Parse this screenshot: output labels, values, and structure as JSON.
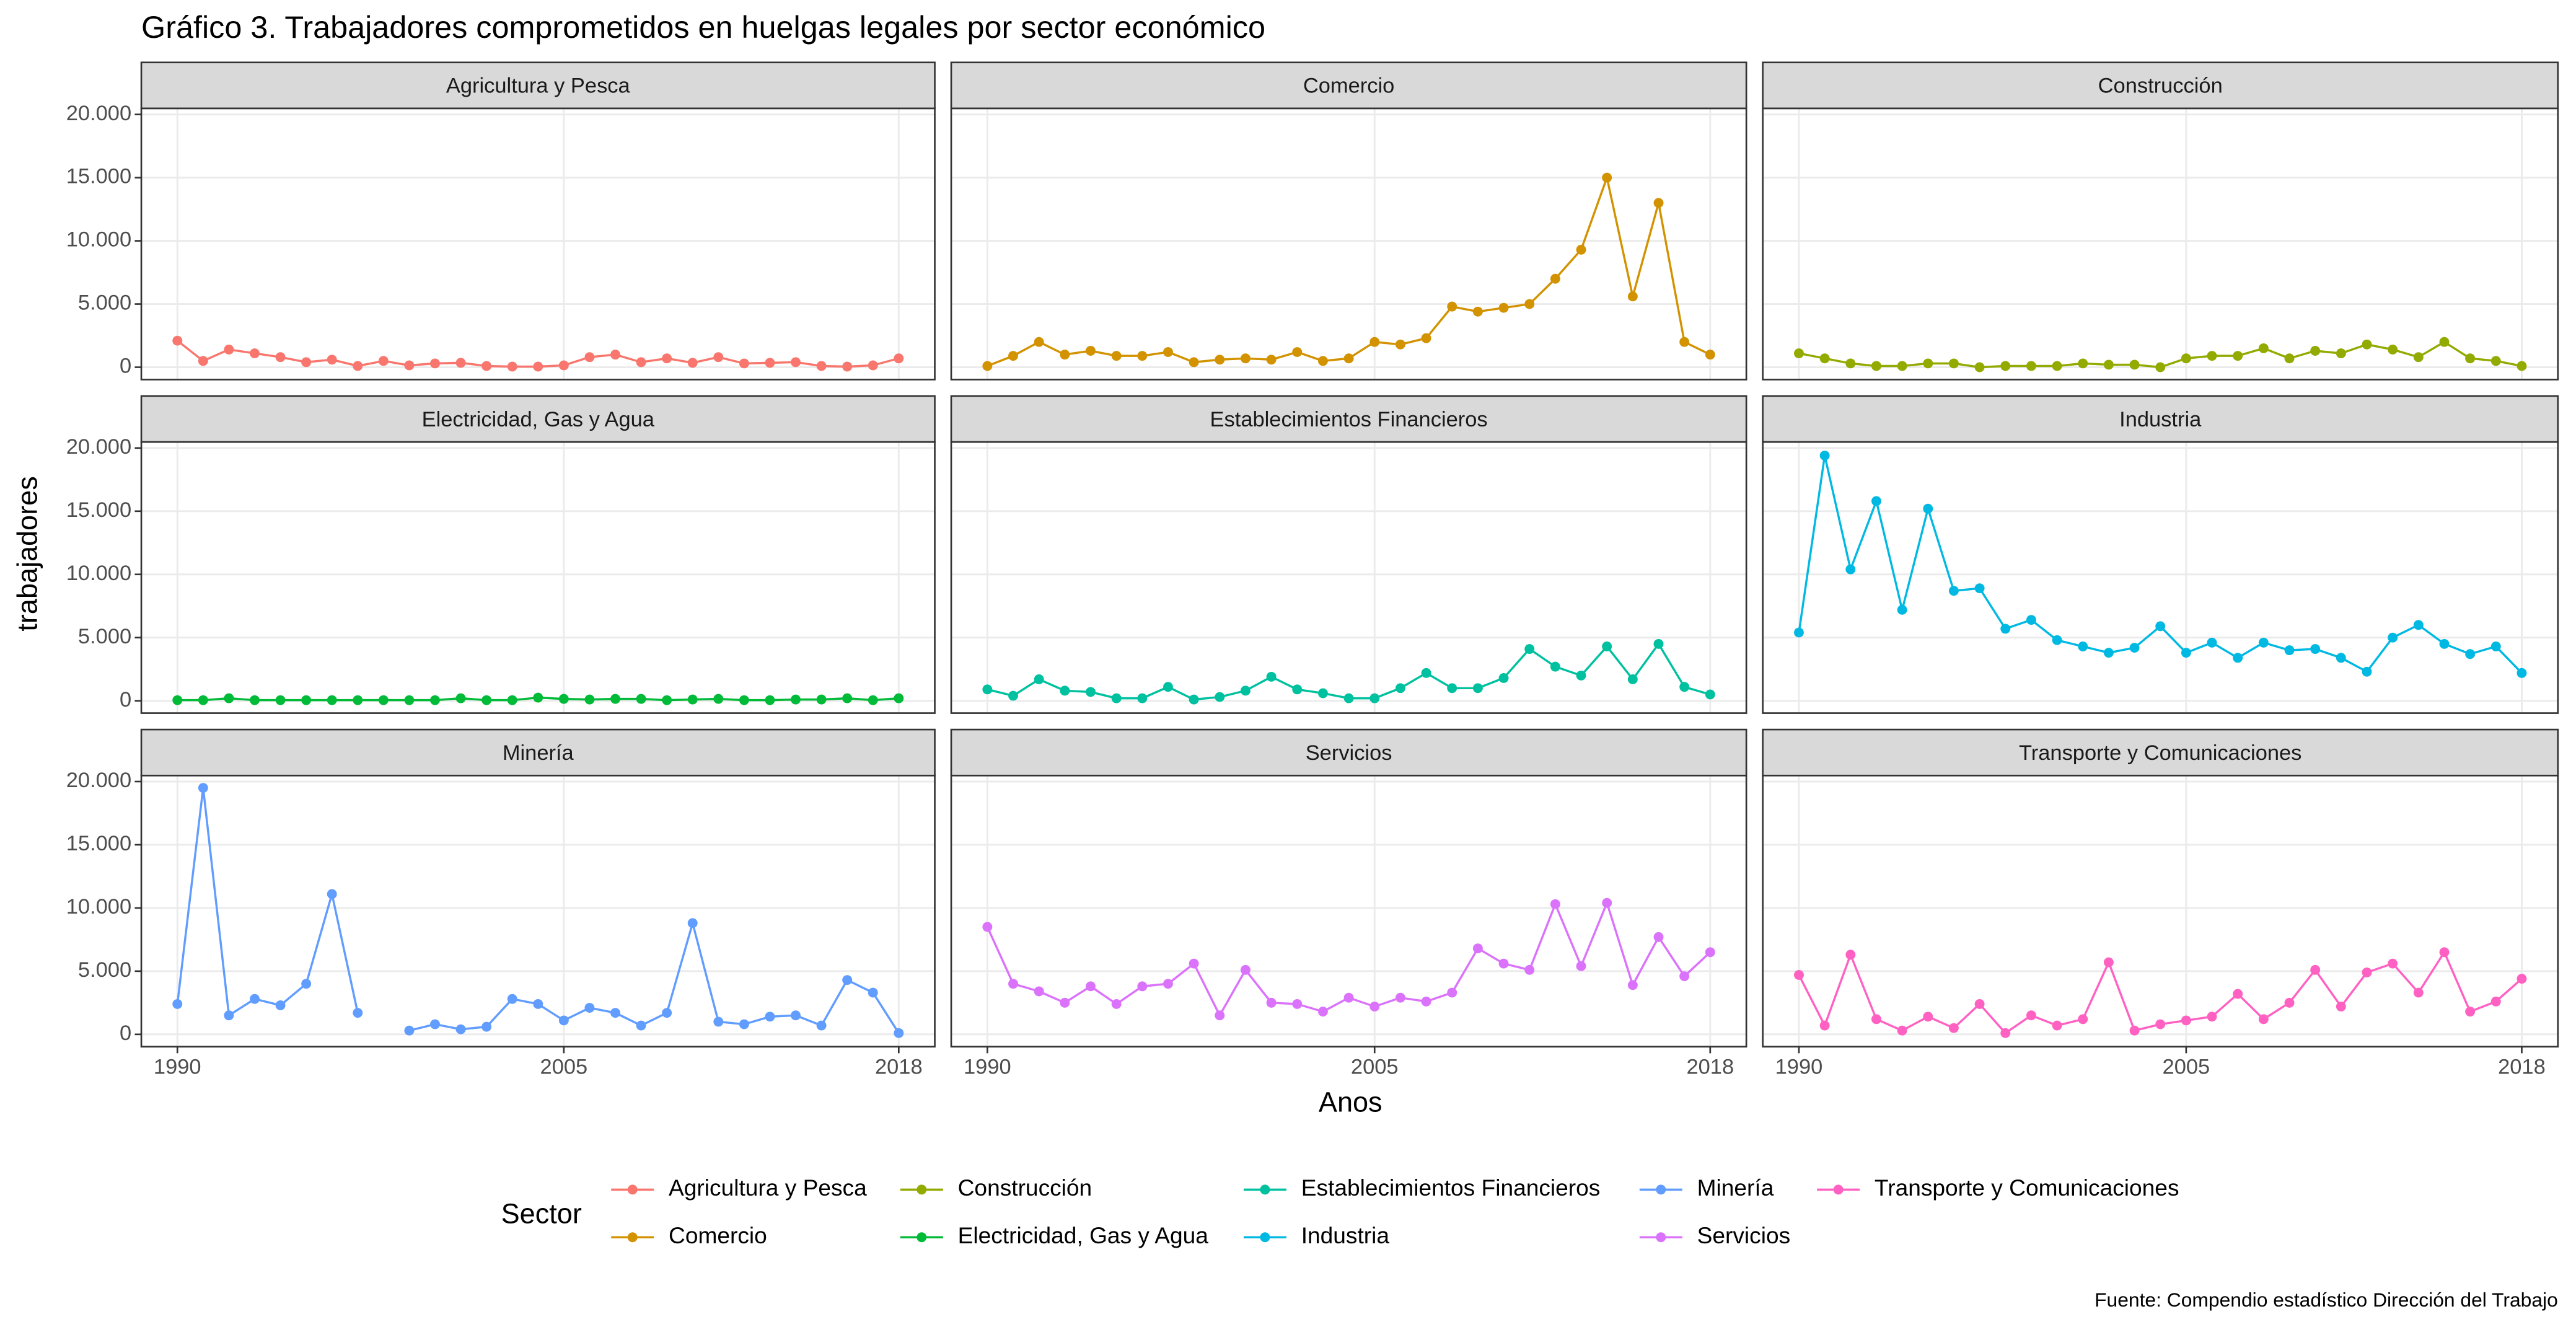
{
  "chart_data": {
    "type": "line",
    "title": "Gráfico 3. Trabajadores comprometidos en huelgas legales por sector económico",
    "xlabel": "Anos",
    "ylabel": "trabajadores",
    "legend_title": "Sector",
    "caption": "Fuente: Compendio estadístico Dirección del Trabajo",
    "grid": true,
    "legend": "bottom",
    "x": [
      1990,
      1991,
      1992,
      1993,
      1994,
      1995,
      1996,
      1997,
      1998,
      1999,
      2000,
      2001,
      2002,
      2003,
      2004,
      2005,
      2006,
      2007,
      2008,
      2009,
      2010,
      2011,
      2012,
      2013,
      2014,
      2015,
      2016,
      2017,
      2018
    ],
    "xlim": [
      1988.6,
      2019.4
    ],
    "xticks": [
      1990,
      2005,
      2018
    ],
    "ylim": [
      -975,
      20475
    ],
    "yticks": [
      0,
      {
        "value": 5000,
        "label": "5.000"
      },
      {
        "value": 10000,
        "label": "10.000"
      },
      {
        "value": 15000,
        "label": "15.000"
      },
      {
        "value": 20000,
        "label": "20.000"
      }
    ],
    "series": [
      {
        "name": "Agricultura y Pesca",
        "color": "#F8766D",
        "values": [
          2100,
          500,
          1400,
          1100,
          800,
          400,
          600,
          100,
          500,
          150,
          300,
          350,
          100,
          50,
          50,
          150,
          800,
          1000,
          400,
          700,
          350,
          800,
          300,
          350,
          400,
          100,
          50,
          150,
          700
        ]
      },
      {
        "name": "Comercio",
        "color": "#D39200",
        "values": [
          100,
          900,
          2000,
          1000,
          1300,
          900,
          900,
          1200,
          400,
          600,
          700,
          600,
          1200,
          500,
          700,
          2000,
          1800,
          2300,
          4800,
          4400,
          4700,
          5000,
          7000,
          9300,
          15000,
          5600,
          13000,
          2000,
          1000
        ]
      },
      {
        "name": "Construcción",
        "color": "#93AA00",
        "values": [
          1100,
          700,
          300,
          100,
          100,
          300,
          300,
          0,
          100,
          100,
          100,
          300,
          200,
          200,
          0,
          700,
          900,
          900,
          1500,
          700,
          1300,
          1100,
          1800,
          1400,
          800,
          2000,
          700,
          500,
          100
        ]
      },
      {
        "name": "Electricidad, Gas y Agua",
        "color": "#00BA38",
        "values": [
          50,
          50,
          200,
          50,
          50,
          50,
          50,
          50,
          50,
          50,
          50,
          200,
          50,
          50,
          250,
          150,
          100,
          150,
          150,
          50,
          100,
          150,
          50,
          50,
          100,
          100,
          200,
          50,
          200
        ]
      },
      {
        "name": "Establecimientos Financieros",
        "color": "#00C19F",
        "values": [
          900,
          400,
          1700,
          800,
          700,
          200,
          200,
          1100,
          100,
          300,
          800,
          1900,
          900,
          600,
          200,
          200,
          1000,
          2200,
          1000,
          1000,
          1800,
          4100,
          2700,
          2000,
          4300,
          1700,
          4500,
          1100,
          500
        ]
      },
      {
        "name": "Industria",
        "color": "#00B9E3",
        "values": [
          5400,
          19400,
          10400,
          15800,
          7200,
          15200,
          8700,
          8900,
          5700,
          6400,
          4800,
          4300,
          3800,
          4200,
          5900,
          3800,
          4600,
          3400,
          4600,
          4000,
          4100,
          3400,
          2300,
          5000,
          6000,
          4500,
          3700,
          4300,
          2200
        ]
      },
      {
        "name": "Minería",
        "color": "#619CFF",
        "values": [
          2400,
          19500,
          1500,
          2800,
          2300,
          4000,
          11100,
          1700,
          null,
          300,
          800,
          400,
          600,
          2800,
          2400,
          1100,
          2100,
          1700,
          700,
          1700,
          8800,
          1000,
          800,
          1400,
          1500,
          700,
          4300,
          3300,
          100
        ]
      },
      {
        "name": "Servicios",
        "color": "#DB72FB",
        "values": [
          8500,
          4000,
          3400,
          2500,
          3800,
          2400,
          3800,
          4000,
          5600,
          1500,
          5100,
          2500,
          2400,
          1800,
          2900,
          2200,
          2900,
          2600,
          3300,
          6800,
          5600,
          5100,
          10300,
          5400,
          10400,
          3900,
          7700,
          4600,
          6500
        ]
      },
      {
        "name": "Transporte y Comunicaciones",
        "color": "#FF61C3",
        "values": [
          4700,
          700,
          6300,
          1200,
          300,
          1400,
          500,
          2400,
          100,
          1500,
          700,
          1200,
          5700,
          300,
          800,
          1100,
          1400,
          3200,
          1200,
          2500,
          5100,
          2200,
          4900,
          5600,
          3300,
          6500,
          1800,
          2600,
          4400
        ]
      }
    ]
  }
}
